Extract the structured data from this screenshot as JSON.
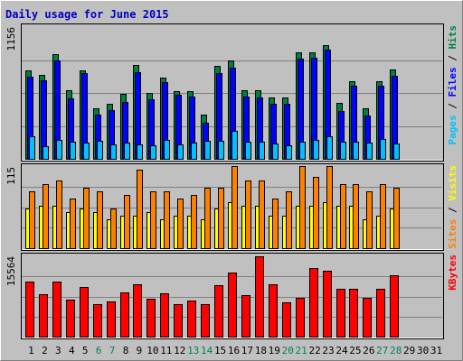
{
  "chart_data": {
    "type": "bar",
    "title": "Daily usage for June 2015",
    "categories": [
      "1",
      "2",
      "3",
      "4",
      "5",
      "6",
      "7",
      "8",
      "9",
      "10",
      "11",
      "12",
      "13",
      "14",
      "15",
      "16",
      "17",
      "18",
      "19",
      "20",
      "21",
      "22",
      "23",
      "24",
      "25",
      "26",
      "27",
      "28",
      "29",
      "30",
      "31"
    ],
    "weekend_days": [
      6,
      7,
      13,
      14,
      20,
      21,
      27,
      28
    ],
    "panels": [
      {
        "name": "traffic",
        "ymax_label": "1156",
        "ymax": 1156,
        "labels": [
          {
            "text": "Pages",
            "color": "#00c0ff"
          },
          {
            "text": " / ",
            "color": "#000000"
          },
          {
            "text": "Files",
            "color": "#0000ff"
          },
          {
            "text": " / ",
            "color": "#000000"
          },
          {
            "text": "Hits",
            "color": "#008040"
          }
        ],
        "series": [
          {
            "name": "Hits",
            "color": "#008040",
            "values": [
              775,
              735,
              915,
              600,
              775,
              440,
              485,
              570,
              820,
              580,
              710,
              595,
              590,
              390,
              815,
              860,
              605,
              600,
              540,
              540,
              935,
              935,
              1000,
              490,
              680,
              440,
              680,
              780,
              0,
              0,
              0
            ]
          },
          {
            "name": "Files",
            "color": "#0000ff",
            "values": [
              720,
              690,
              860,
              530,
              750,
              390,
              430,
              500,
              760,
              520,
              670,
              560,
              550,
              320,
              755,
              800,
              550,
              540,
              480,
              480,
              880,
              885,
              960,
              420,
              640,
              380,
              640,
              730,
              0,
              0,
              0
            ]
          },
          {
            "name": "Pages",
            "color": "#00c0ff",
            "values": [
              195,
              110,
              165,
              150,
              145,
              155,
              125,
              140,
              130,
              120,
              165,
              130,
              140,
              160,
              160,
              245,
              150,
              150,
              135,
              120,
              150,
              165,
              200,
              150,
              150,
              140,
              175,
              135,
              0,
              0,
              0
            ]
          }
        ]
      },
      {
        "name": "visits",
        "ymax_label": "115",
        "ymax": 115,
        "labels": [
          {
            "text": "Sites",
            "color": "#ff8000"
          },
          {
            "text": " / ",
            "color": "#000000"
          },
          {
            "text": "Visits",
            "color": "#ffff00"
          }
        ],
        "series": [
          {
            "name": "Visits",
            "color": "#ffff00",
            "values": [
              55,
              60,
              60,
              50,
              55,
              50,
              40,
              45,
              45,
              50,
              40,
              45,
              45,
              40,
              55,
              65,
              60,
              60,
              45,
              45,
              60,
              60,
              65,
              60,
              60,
              40,
              45,
              55,
              0,
              0,
              0
            ]
          },
          {
            "name": "Sites",
            "color": "#ff8000",
            "values": [
              80,
              90,
              95,
              70,
              85,
              80,
              55,
              75,
              110,
              80,
              80,
              70,
              75,
              85,
              85,
              115,
              95,
              95,
              70,
              80,
              115,
              100,
              115,
              90,
              90,
              80,
              90,
              85,
              0,
              0,
              0
            ]
          }
        ]
      },
      {
        "name": "kbytes",
        "ymax_label": "15564",
        "ymax": 15564,
        "labels": [
          {
            "text": "KBytes",
            "color": "#ff0000"
          }
        ],
        "series": [
          {
            "name": "KBytes",
            "color": "#ff0000",
            "values": [
              10700,
              8300,
              10700,
              7200,
              9700,
              6300,
              6800,
              8600,
              10100,
              7400,
              8400,
              6300,
              7000,
              6300,
              9900,
              12500,
              8100,
              15564,
              10100,
              6600,
              7500,
              13300,
              12800,
              9200,
              9200,
              7600,
              9200,
              11900,
              0,
              0,
              0
            ]
          }
        ]
      }
    ],
    "grid": true
  }
}
